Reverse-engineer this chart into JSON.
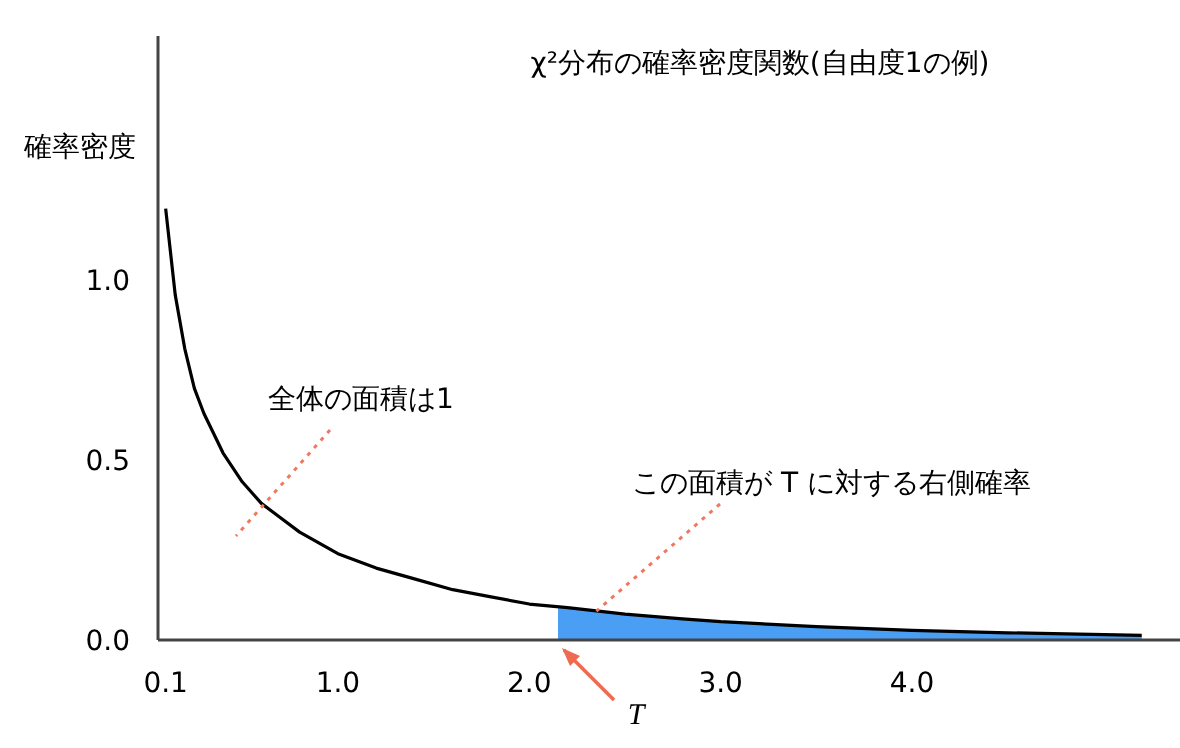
{
  "chart_data": {
    "type": "line",
    "title": "χ²分布の確率密度関数(自由度1の例)",
    "ylabel": "確率密度",
    "xlim": [
      0.06,
      5.4
    ],
    "ylim": [
      0,
      1.68
    ],
    "xticks": [
      {
        "value": 0.1,
        "label": "0.1"
      },
      {
        "value": 1,
        "label": "1.0"
      },
      {
        "value": 2,
        "label": "2.0"
      },
      {
        "value": 3,
        "label": "3.0"
      },
      {
        "value": 4,
        "label": "4.0"
      }
    ],
    "yticks": [
      {
        "value": 0,
        "label": "0.0"
      },
      {
        "value": 0.5,
        "label": "0.5"
      },
      {
        "value": 1,
        "label": "1.0"
      }
    ],
    "series": [
      {
        "type": "area",
        "color": "#4a9ff5",
        "x": [
          2.15,
          2.2,
          2.5,
          2.8,
          3.0,
          3.5,
          4.0,
          4.5,
          5.2
        ],
        "values": [
          0.093,
          0.09,
          0.072,
          0.059,
          0.051,
          0.037,
          0.027,
          0.02,
          0.013
        ]
      },
      {
        "color": "#000000",
        "x": [
          0.1,
          0.15,
          0.2,
          0.25,
          0.3,
          0.4,
          0.5,
          0.6,
          0.7,
          0.8,
          0.9,
          1.0,
          1.2,
          1.4,
          1.6,
          1.8,
          2.0,
          2.2,
          2.5,
          2.8,
          3.0,
          3.5,
          4.0,
          4.5,
          5.2
        ],
        "values": [
          1.2,
          0.96,
          0.81,
          0.7,
          0.63,
          0.52,
          0.44,
          0.38,
          0.34,
          0.3,
          0.27,
          0.24,
          0.2,
          0.17,
          0.14,
          0.12,
          0.1,
          0.09,
          0.072,
          0.059,
          0.051,
          0.037,
          0.027,
          0.02,
          0.013
        ]
      }
    ],
    "annotations": [
      {
        "text": "全体の面積は1",
        "x": 0.62,
        "y": 0.39
      },
      {
        "text": "この面積が T に対する右側確率",
        "x": 2.35,
        "y": 0.08
      },
      {
        "text": "T",
        "x": 2.15,
        "y": 0
      }
    ]
  }
}
